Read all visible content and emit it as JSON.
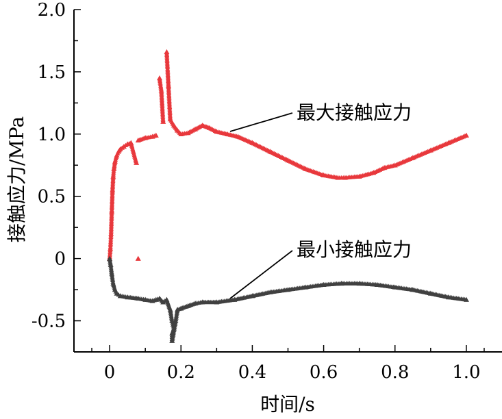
{
  "chart_data": {
    "type": "scatter",
    "xlabel": "时间/s",
    "ylabel": "接触应力/MPa",
    "xlim": [
      -0.1,
      1.1
    ],
    "ylim": [
      -0.75,
      2.0
    ],
    "x_ticks": [
      "0",
      "0.2",
      "0.4",
      "0.6",
      "0.8",
      "1.0"
    ],
    "y_ticks": [
      "-0.5",
      "0",
      "0.5",
      "1.0",
      "1.5",
      "2.0"
    ],
    "grid": false,
    "marker": "triangle",
    "series": [
      {
        "name": "最大接触应力",
        "color": "#e8383c",
        "points": [
          [
            0.0,
            0.0
          ],
          [
            0.002,
            0.08
          ],
          [
            0.004,
            0.2
          ],
          [
            0.006,
            0.38
          ],
          [
            0.008,
            0.55
          ],
          [
            0.01,
            0.66
          ],
          [
            0.012,
            0.72
          ],
          [
            0.015,
            0.78
          ],
          [
            0.02,
            0.83
          ],
          [
            0.025,
            0.86
          ],
          [
            0.03,
            0.88
          ],
          [
            0.04,
            0.9
          ],
          [
            0.05,
            0.92
          ],
          [
            0.06,
            0.93
          ],
          [
            0.075,
            0.77
          ],
          [
            0.08,
            0.0
          ],
          [
            0.08,
            0.95
          ],
          [
            0.1,
            0.97
          ],
          [
            0.12,
            0.98
          ],
          [
            0.13,
            0.99
          ],
          [
            0.14,
            1.45
          ],
          [
            0.145,
            1.35
          ],
          [
            0.15,
            1.1
          ],
          [
            0.16,
            1.66
          ],
          [
            0.165,
            1.39
          ],
          [
            0.17,
            1.12
          ],
          [
            0.18,
            1.07
          ],
          [
            0.19,
            1.03
          ],
          [
            0.2,
            1.0
          ],
          [
            0.22,
            1.01
          ],
          [
            0.24,
            1.04
          ],
          [
            0.26,
            1.07
          ],
          [
            0.28,
            1.05
          ],
          [
            0.3,
            1.02
          ],
          [
            0.33,
            1.0
          ],
          [
            0.36,
            0.98
          ],
          [
            0.4,
            0.93
          ],
          [
            0.45,
            0.86
          ],
          [
            0.5,
            0.79
          ],
          [
            0.55,
            0.72
          ],
          [
            0.6,
            0.67
          ],
          [
            0.64,
            0.65
          ],
          [
            0.66,
            0.65
          ],
          [
            0.7,
            0.66
          ],
          [
            0.74,
            0.69
          ],
          [
            0.77,
            0.73
          ],
          [
            0.8,
            0.75
          ],
          [
            0.85,
            0.81
          ],
          [
            0.9,
            0.87
          ],
          [
            0.95,
            0.93
          ],
          [
            1.0,
            0.99
          ]
        ]
      },
      {
        "name": "最小接触应力",
        "color": "#404040",
        "points": [
          [
            0.0,
            0.0
          ],
          [
            0.003,
            -0.05
          ],
          [
            0.006,
            -0.12
          ],
          [
            0.01,
            -0.2
          ],
          [
            0.015,
            -0.25
          ],
          [
            0.02,
            -0.28
          ],
          [
            0.03,
            -0.3
          ],
          [
            0.05,
            -0.31
          ],
          [
            0.08,
            -0.32
          ],
          [
            0.1,
            -0.33
          ],
          [
            0.12,
            -0.34
          ],
          [
            0.13,
            -0.33
          ],
          [
            0.14,
            -0.32
          ],
          [
            0.15,
            -0.35
          ],
          [
            0.16,
            -0.33
          ],
          [
            0.17,
            -0.41
          ],
          [
            0.175,
            -0.5
          ],
          [
            0.178,
            -0.53
          ],
          [
            0.18,
            -0.56
          ],
          [
            0.175,
            -0.6
          ],
          [
            0.175,
            -0.66
          ],
          [
            0.185,
            -0.5
          ],
          [
            0.19,
            -0.41
          ],
          [
            0.2,
            -0.4
          ],
          [
            0.22,
            -0.38
          ],
          [
            0.24,
            -0.36
          ],
          [
            0.26,
            -0.35
          ],
          [
            0.3,
            -0.35
          ],
          [
            0.35,
            -0.33
          ],
          [
            0.4,
            -0.3
          ],
          [
            0.45,
            -0.27
          ],
          [
            0.5,
            -0.25
          ],
          [
            0.55,
            -0.23
          ],
          [
            0.6,
            -0.21
          ],
          [
            0.65,
            -0.2
          ],
          [
            0.7,
            -0.2
          ],
          [
            0.75,
            -0.21
          ],
          [
            0.8,
            -0.23
          ],
          [
            0.85,
            -0.25
          ],
          [
            0.9,
            -0.28
          ],
          [
            0.95,
            -0.31
          ],
          [
            1.0,
            -0.33
          ]
        ]
      }
    ],
    "annotations": [
      {
        "text": "最大接触应力",
        "series": "最大接触应力"
      },
      {
        "text": "最小接触应力",
        "series": "最小接触应力"
      }
    ]
  }
}
